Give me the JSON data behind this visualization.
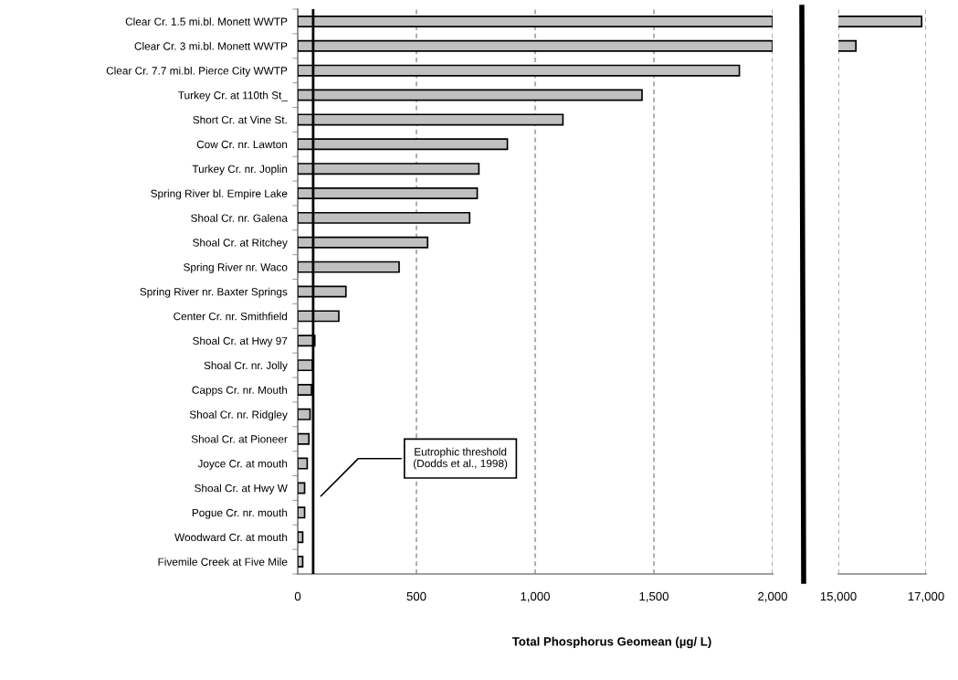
{
  "chart_data": [
    {
      "type": "bar",
      "orientation": "horizontal",
      "xlabel": "Total Phosphorus Geomean (µg/ L)",
      "categories": [
        "Clear Cr. 1.5 mi.bl. Monett WWTP",
        "Clear Cr. 3 mi.bl. Monett WWTP",
        "Clear Cr. 7.7 mi.bl. Pierce City WWTP",
        "Turkey Cr. at 110th St_",
        "Short Cr. at Vine St.",
        "Cow Cr. nr. Lawton",
        "Turkey Cr. nr. Joplin",
        "Spring River bl. Empire Lake",
        "Shoal Cr. nr. Galena",
        "Shoal Cr. at Ritchey",
        "Spring River nr. Waco",
        "Spring River nr. Baxter Springs",
        "Center Cr. nr. Smithfield",
        "Shoal Cr. at Hwy 97",
        "Shoal Cr. nr. Jolly",
        "Capps Cr. nr. Mouth",
        "Shoal Cr. nr. Ridgley",
        "Shoal Cr. at Pioneer",
        "Joyce Cr. at mouth",
        "Shoal Cr. at Hwy W",
        "Pogue Cr. nr. mouth",
        "Woodward Cr. at mouth",
        "Fivemile Creek at Five Mile"
      ],
      "values": [
        2000,
        2000,
        1860,
        1450,
        1117,
        883,
        763,
        756,
        724,
        547,
        427,
        203,
        173,
        72,
        62,
        58,
        52,
        47,
        40,
        29,
        29,
        21,
        21
      ],
      "color": "#c0c0c0",
      "xlim": [
        0,
        2000
      ],
      "xticks": [
        {
          "value": 0,
          "label": "0"
        },
        {
          "value": 500,
          "label": "500"
        },
        {
          "value": 1000,
          "label": "1,000"
        },
        {
          "value": 1500,
          "label": "1,500"
        },
        {
          "value": 2000,
          "label": "2,000"
        }
      ],
      "grid": "x",
      "ref_lines": [
        {
          "axis": "x",
          "value": 65,
          "label": "Eutrophic threshold\n(Dodds et al., 1998)",
          "color": "#000000"
        }
      ]
    },
    {
      "type": "bar",
      "orientation": "horizontal",
      "values": [
        16900,
        15400,
        null,
        null,
        null,
        null,
        null,
        null,
        null,
        null,
        null,
        null,
        null,
        null,
        null,
        null,
        null,
        null,
        null,
        null,
        null,
        null,
        null
      ],
      "color": "#c0c0c0",
      "xlim": [
        15000,
        17000
      ],
      "xticks": [
        {
          "value": 15000,
          "label": "15,000"
        },
        {
          "value": 17000,
          "label": "17,000"
        }
      ],
      "grid": "x",
      "tick_labels": "x"
    }
  ]
}
